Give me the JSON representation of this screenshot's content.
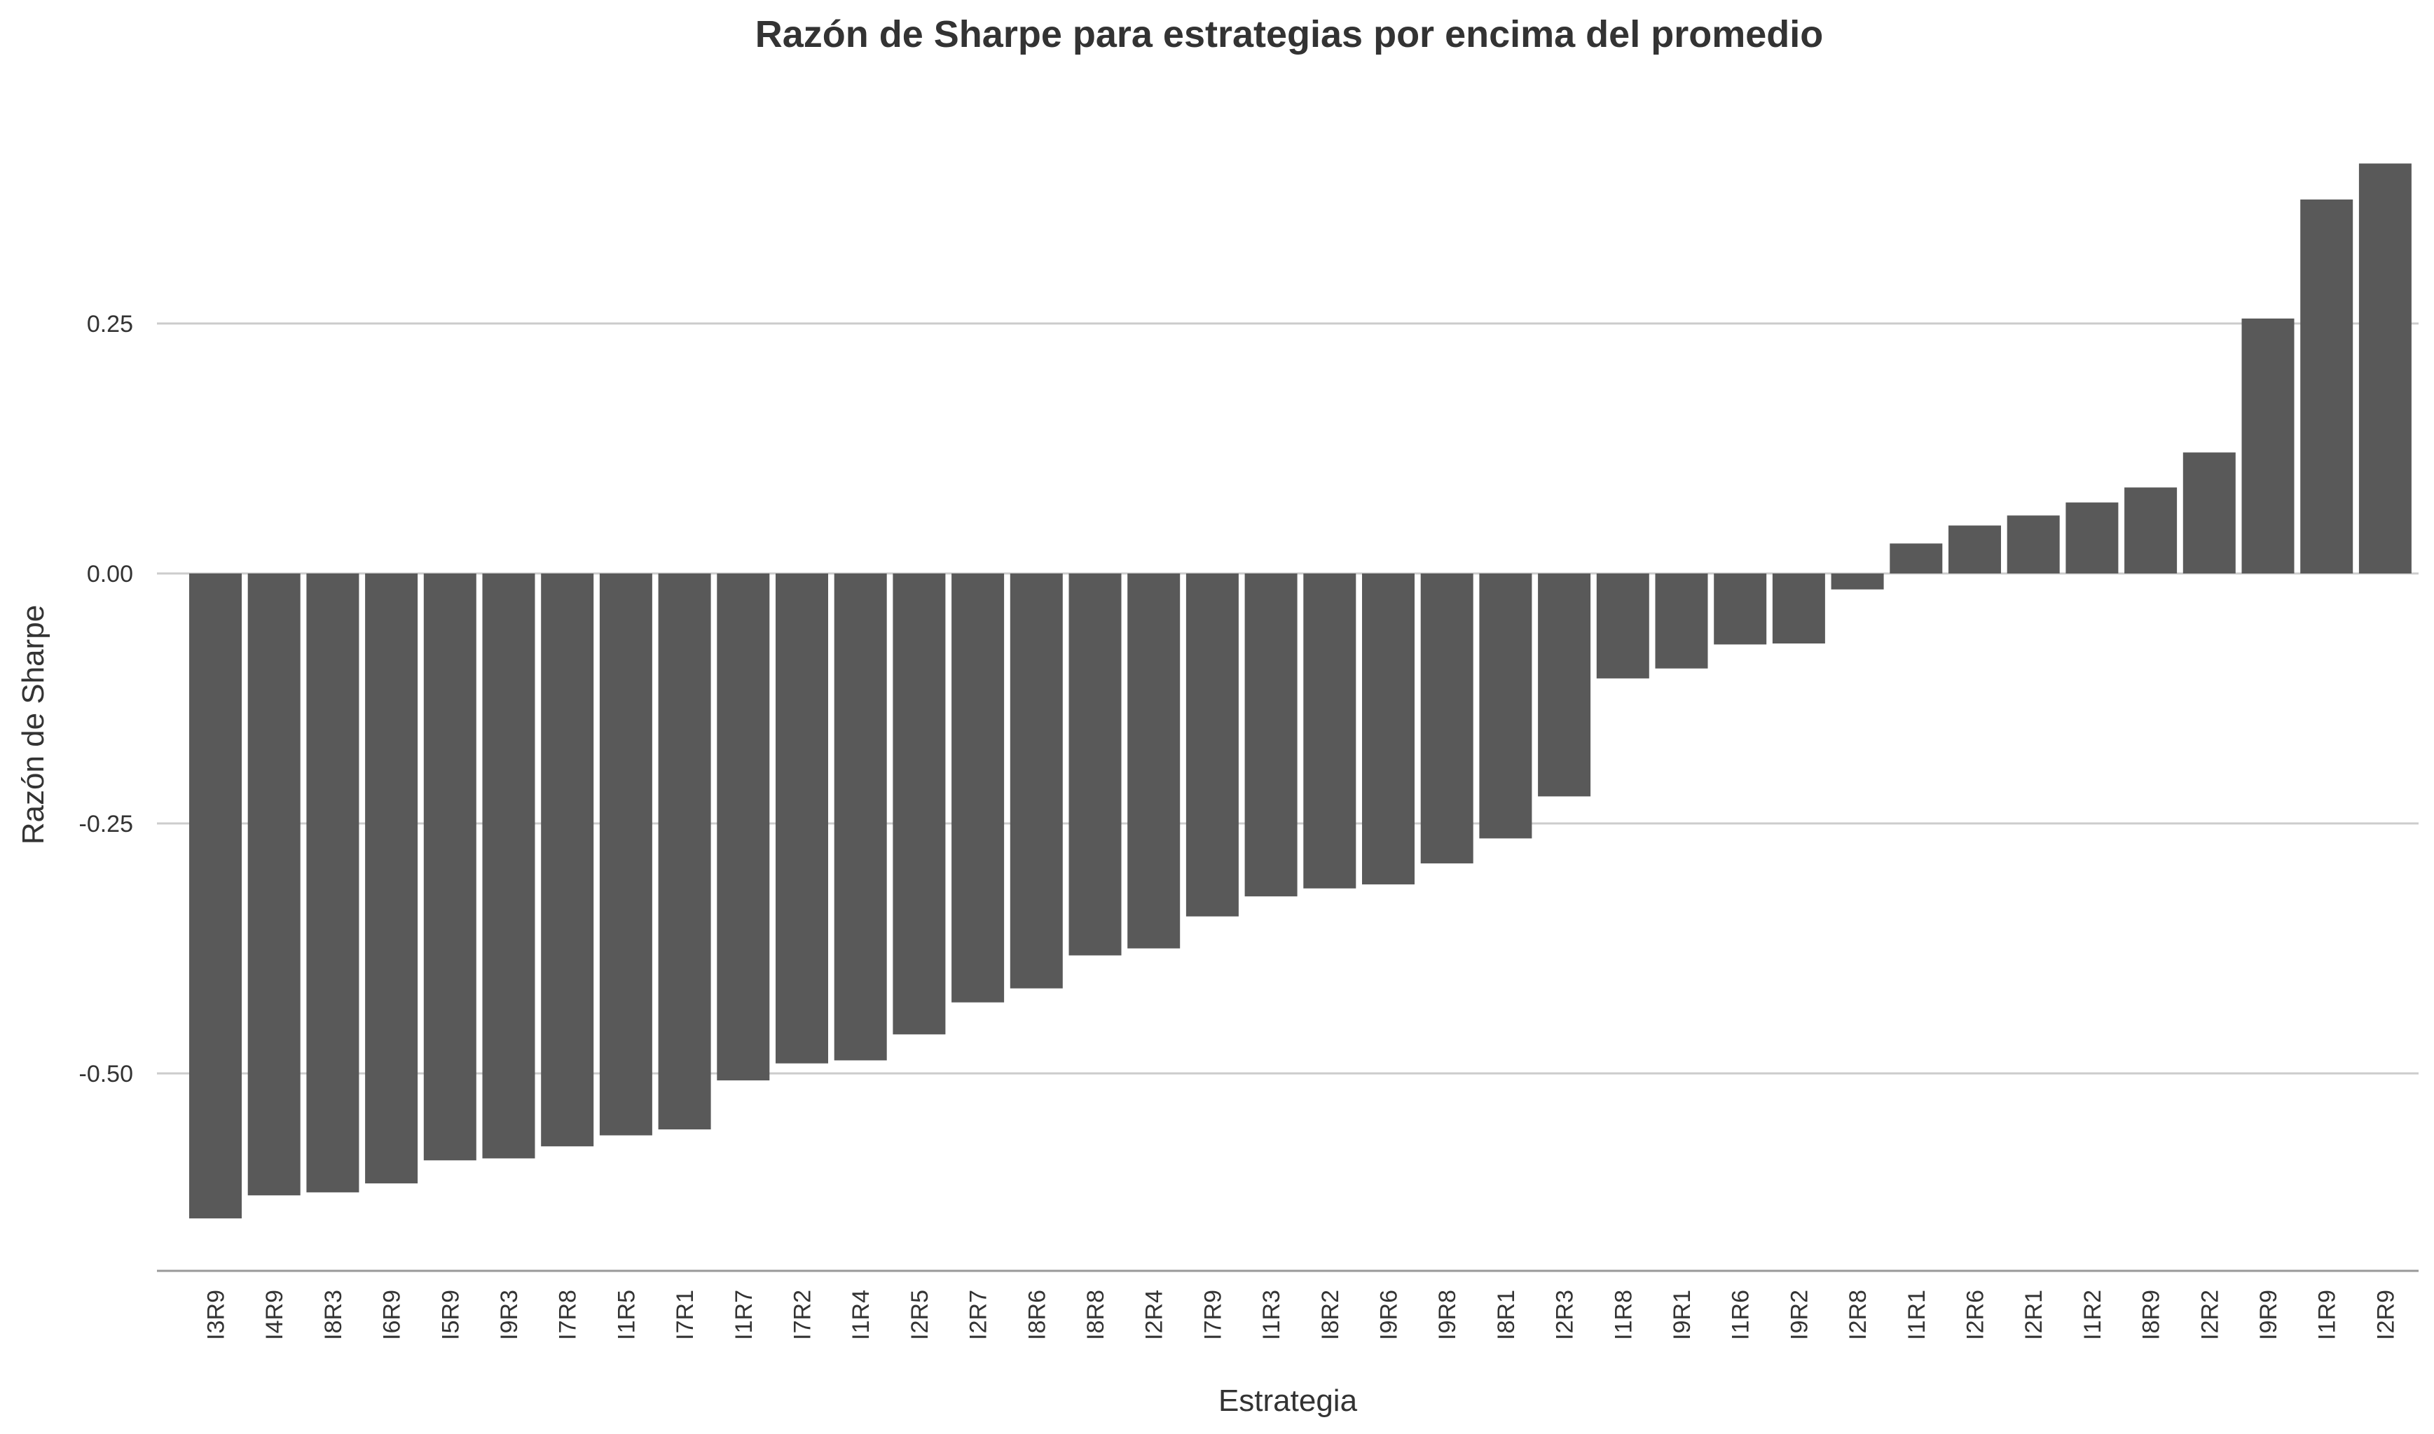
{
  "chart_data": {
    "type": "bar",
    "title": "Razón de Sharpe para estrategias por encima del promedio",
    "xlabel": "Estrategia",
    "ylabel": "Razón de Sharpe",
    "categories": [
      "I3R9",
      "I4R9",
      "I8R3",
      "I6R9",
      "I5R9",
      "I9R3",
      "I7R8",
      "I1R5",
      "I7R1",
      "I1R7",
      "I7R2",
      "I1R4",
      "I2R5",
      "I2R7",
      "I8R6",
      "I8R8",
      "I2R4",
      "I7R9",
      "I1R3",
      "I8R2",
      "I9R6",
      "I9R8",
      "I8R1",
      "I2R3",
      "I1R8",
      "I9R1",
      "I1R6",
      "I9R2",
      "I2R8",
      "I1R1",
      "I2R6",
      "I2R1",
      "I1R2",
      "I8R9",
      "I2R2",
      "I9R9",
      "I1R9",
      "I2R9"
    ],
    "values": [
      -0.645,
      -0.622,
      -0.619,
      -0.61,
      -0.587,
      -0.585,
      -0.573,
      -0.562,
      -0.556,
      -0.507,
      -0.49,
      -0.487,
      -0.461,
      -0.429,
      -0.415,
      -0.382,
      -0.375,
      -0.343,
      -0.323,
      -0.315,
      -0.311,
      -0.29,
      -0.265,
      -0.223,
      -0.105,
      -0.095,
      -0.071,
      -0.07,
      -0.016,
      0.03,
      0.048,
      0.058,
      0.071,
      0.086,
      0.121,
      0.255,
      0.374,
      0.41
    ],
    "yticks": [
      -0.5,
      -0.25,
      0,
      0.25
    ],
    "ytick_labels": [
      "-0.50",
      "-0.25",
      "0.00",
      "0.25"
    ],
    "ylim": [
      -0.7,
      0.45
    ],
    "grid": true,
    "bar_color": "#595959",
    "grid_color": "#cccccc",
    "text_color": "#333333"
  }
}
